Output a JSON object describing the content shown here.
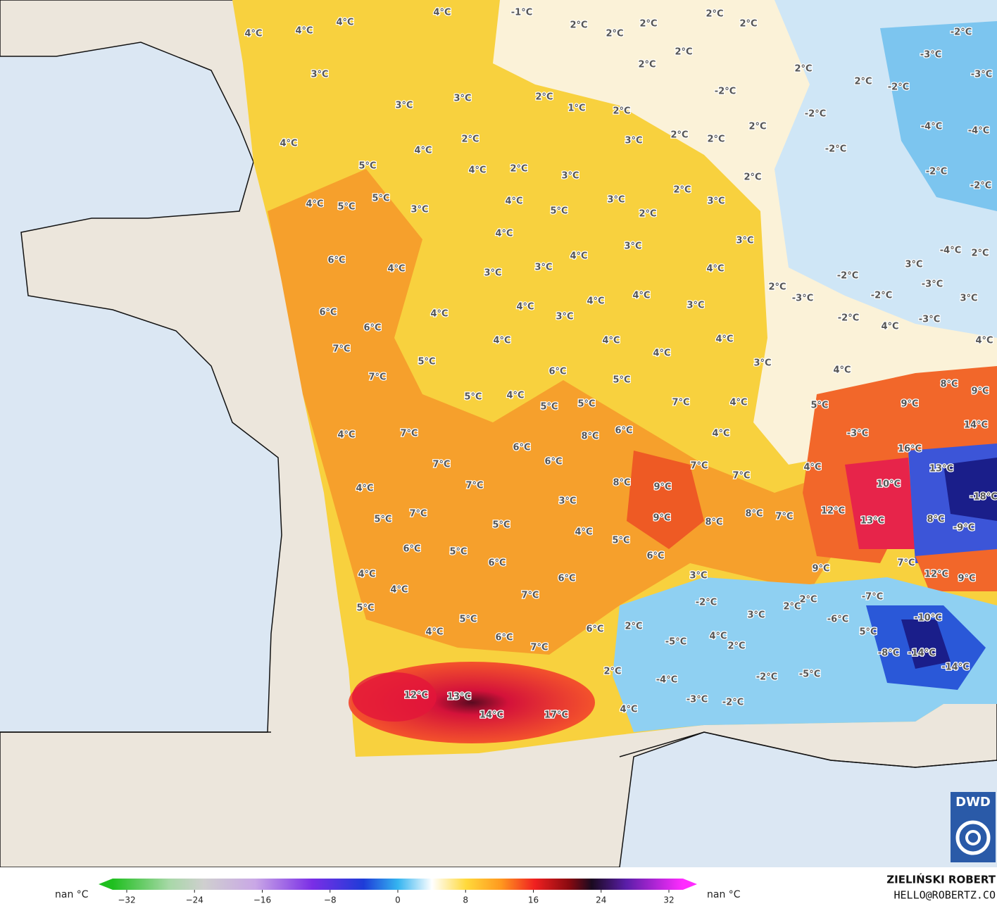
{
  "map": {
    "labels": [
      "4°C",
      "4°C",
      "4°C",
      "4°C",
      "-1°C",
      "2°C",
      "2°C",
      "2°C",
      "2°C",
      "2°C",
      "2°C",
      "2°C",
      "-2°C",
      "-3°C",
      "-3°C",
      "2°C",
      "2°C",
      "-2°C",
      "-2°C",
      "3°C",
      "3°C",
      "3°C",
      "2°C",
      "1°C",
      "2°C",
      "-2°C",
      "-4°C",
      "-4°C",
      "4°C",
      "4°C",
      "2°C",
      "3°C",
      "2°C",
      "2°C",
      "2°C",
      "-2°C",
      "-2°C",
      "-2°C",
      "5°C",
      "4°C",
      "2°C",
      "3°C",
      "2°C",
      "2°C",
      "3°C",
      "3°C",
      "4°C",
      "5°C",
      "5°C",
      "3°C",
      "4°C",
      "5°C",
      "2°C",
      "4°C",
      "3°C",
      "3°C",
      "6°C",
      "4°C",
      "3°C",
      "3°C",
      "4°C",
      "4°C",
      "3°C",
      "-4°C",
      "2°C",
      "-2°C",
      "2°C",
      "-3°C",
      "-2°C",
      "-3°C",
      "3°C",
      "4°C",
      "4°C",
      "3°C",
      "-2°C",
      "-3°C",
      "6°C",
      "4°C",
      "4°C",
      "3°C",
      "6°C",
      "4°C",
      "4°C",
      "4°C",
      "4°C",
      "4°C",
      "4°C",
      "7°C",
      "5°C",
      "6°C",
      "3°C",
      "4°C",
      "8°C",
      "9°C",
      "7°C",
      "5°C",
      "5°C",
      "4°C",
      "5°C",
      "5°C",
      "7°C",
      "4°C",
      "5°C",
      "9°C",
      "14°C",
      "4°C",
      "7°C",
      "8°C",
      "6°C",
      "4°C",
      "-3°C",
      "6°C",
      "16°C",
      "7°C",
      "6°C",
      "7°C",
      "4°C",
      "13°C",
      "7°C",
      "7°C",
      "8°C",
      "9°C",
      "10°C",
      "4°C",
      "3°C",
      "-18°C",
      "12°C",
      "7°C",
      "8°C",
      "7°C",
      "9°C",
      "8°C",
      "13°C",
      "8°C",
      "-9°C",
      "5°C",
      "5°C",
      "4°C",
      "5°C",
      "6°C",
      "5°C",
      "6°C",
      "6°C",
      "7°C",
      "9°C",
      "4°C",
      "6°C",
      "3°C",
      "12°C",
      "9°C",
      "4°C",
      "7°C",
      "-7°C",
      "2°C",
      "-2°C",
      "2°C",
      "5°C",
      "5°C",
      "3°C",
      "-6°C",
      "-10°C",
      "2°C",
      "6°C",
      "4°C",
      "5°C",
      "6°C",
      "4°C",
      "-5°C",
      "2°C",
      "7°C",
      "-8°C",
      "-14°C",
      "2°C",
      "-14°C",
      "-5°C",
      "-4°C",
      "-2°C",
      "12°C",
      "13°C",
      "-3°C",
      "-2°C",
      "4°C",
      "14°C",
      "17°C"
    ]
  },
  "colorbar": {
    "left_label": "nan °C",
    "right_label": "nan °C",
    "ticks": [
      {
        "value": -32,
        "label": "−32"
      },
      {
        "value": -24,
        "label": "−24"
      },
      {
        "value": -16,
        "label": "−16"
      },
      {
        "value": -8,
        "label": "−8"
      },
      0,
      8,
      16,
      24,
      32
    ]
  },
  "credit": {
    "name": "ZIELIŃSKI ROBERT",
    "email": "HELLO@ROBERTZ.CO"
  },
  "logo": "DWD"
}
